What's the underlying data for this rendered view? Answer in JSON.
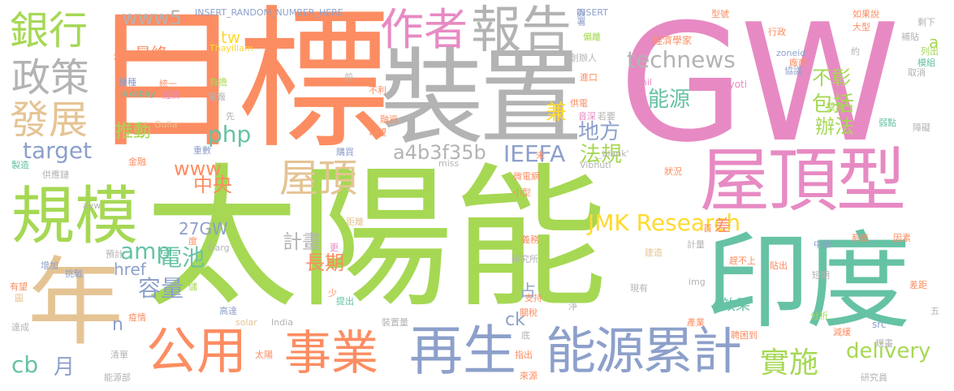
{
  "palette": {
    "green": "#a6d854",
    "orange": "#fc8d62",
    "blue": "#8da0cb",
    "pink": "#e78ac3",
    "teal": "#66c2a5",
    "tan": "#e5c494",
    "gray": "#b3b3b3",
    "yellow": "#ffd92f"
  },
  "words": {
    "taiyangneng": "太陽能",
    "gw": "GW",
    "mubiao": "目標",
    "zhuangzhi": "裝置",
    "yindu": "印度",
    "wuding_xing": "屋頂型",
    "guimo": "規模",
    "nian": "年",
    "zaisheng": "再生",
    "nengyuan_leiji": "能源累計",
    "gongyong": "公用",
    "shiye": "事業",
    "zuozhe": "作者",
    "baogao": "報告",
    "yinhang": "銀行",
    "zhengce": "政策",
    "fazhan": "發展",
    "wuding": "屋頂",
    "jmk": "JMK Research",
    "technews": "technews",
    "shishi": "實施",
    "target": "target",
    "ieefa": "IEEFA",
    "a4b3f35b": "a4b3f35b",
    "php": "php",
    "www5": "www5",
    "www": "www",
    "tw": "tw",
    "amp": "amp",
    "dianchi": "電池",
    "rongliang": "容量",
    "delivery": "delivery",
    "cb": "cb",
    "yue": "月",
    "nengyuan": "能源",
    "difang": "地方",
    "fagui": "法規",
    "baokuo": "包括",
    "buzhang": "不彰",
    "banfa": "辦法",
    "jian": "兼",
    "tuidong": "推動",
    "zuizhong": "最終",
    "gw27": "27GW",
    "jihua": "計畫",
    "changqi": "長期",
    "zhongyang": "中央",
    "href": "href",
    "n": "n",
    "ck": "ck",
    "zhan": "占",
    "cha": "差",
    "a": "a",
    "xiaoguo": "效果",
    "insert_random": "INSERT_RANDOM_NUMBER_HERE",
    "insert": "INSERT",
    "zoneid": "zoneid",
    "jingjixuejia": "經濟學家",
    "chuangbanren": "創辦人",
    "thayillam": "Thayillam",
    "akhil": "Akhil",
    "jyoti": "Jyoti",
    "gulia": "Gulia",
    "pixabay": "pixabay",
    "zhongzhong": "種種",
    "tongyi": "統一",
    "jingji": "經濟",
    "guihua": "規劃",
    "fudan": "負擔",
    "dianchang": "電廠",
    "qian": "前",
    "buli": "不利",
    "jinkou": "進口",
    "gongdian": "供電",
    "yinshen": "音深",
    "ruoyao": "若要",
    "rongzi": "融資",
    "xiwang": "希望",
    "gouzhi": "購買",
    "xian": "先",
    "chongshu": "重數",
    "piantai": "偏離",
    "qianshu": "簽署",
    "xingzheng": "行政",
    "changshang": "廠商",
    "datype": "大型",
    "buzhu": "補貼",
    "liechu": "列出",
    "mozu": "模組",
    "shengxia": "剩下",
    "xingzhong": "型號",
    "ruguo_shuo": "如果說",
    "yue_about": "約",
    "xieyi": "協議",
    "quxiao": "取消",
    "shuangchong": "雙重",
    "ruodian": "弱點",
    "zhangai": "障礙",
    "zhizao": "製造",
    "gongyingjian": "供應鏈",
    "jinrong": "金融",
    "avw": "avw",
    "miss": "miss",
    "blank": "_blank'",
    "vibhuti": "Vibhuti",
    "weidianwang": "微電網",
    "xiaoxing": "小型",
    "wei": "未",
    "zhuangkuang": "狀況",
    "jili": "距離",
    "jiliang": "計量",
    "zhongduan": "中斷",
    "xitong": "系統",
    "yinsu": "因素",
    "jianzao": "建造",
    "ganbushang": "趕不上",
    "tiechu": "貼出",
    "duanqi": "短期",
    "chaju": "差距",
    "fenxi": "分析",
    "src": "src",
    "wu": "五",
    "shouyu": "首",
    "gen": "更",
    "yanjiusuo": "研究所",
    "yiwu": "義務",
    "garg": "Garg",
    "du": "度",
    "zengjia": "增加",
    "tiaozhan": "挑戰",
    "yuji": "預計",
    "chu": "儲",
    "shao": "少",
    "tichu": "提出",
    "zhichi": "支持",
    "guanshui": "關稅",
    "jing": "淨",
    "xianyou": "現有",
    "img": "img",
    "youwang": "有望",
    "tu": "圖",
    "yiqing": "疫情",
    "gaosu": "高達",
    "solar": "solar",
    "india": "India",
    "zhuangzhiliang": "裝置量",
    "di": "底",
    "zhichu": "指出",
    "laiyuan": "來源",
    "chanye": "產業",
    "pinqing": "聘困到",
    "jianshao": "減緩",
    "guimo_small": "規畫",
    "yanjiuyuan": "研究員",
    "dacheng": "達成",
    "qingdan": "清單",
    "taiyang_small": "太陽",
    "nengyuanbu": "能源部"
  }
}
